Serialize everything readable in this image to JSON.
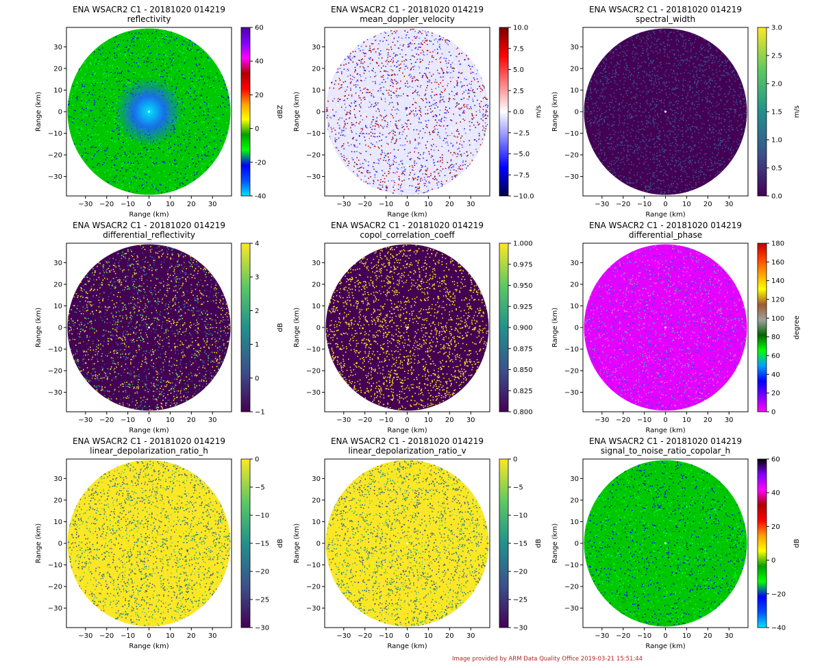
{
  "footer": {
    "credit": "Image provided by ARM Data Quality Office 2019-03-21 15:51:44"
  },
  "chart_data": [
    {
      "type": "heatmap",
      "title": "ENA WSACR2 C1 - 20181020 014219",
      "subtitle": "reflectivity",
      "xlabel": "Range (km)",
      "ylabel": "Range (km)",
      "xlim": [
        -39,
        39
      ],
      "ylim": [
        -39,
        39
      ],
      "xticks": [
        -30,
        -20,
        -10,
        0,
        10,
        20,
        30
      ],
      "yticks": [
        -30,
        -20,
        -10,
        0,
        10,
        20,
        30
      ],
      "colorbar": {
        "label": "dBZ",
        "range": [
          -40,
          60
        ],
        "ticks": [
          "-40",
          "-20",
          "0",
          "20",
          "40",
          "60"
        ],
        "colors": [
          "#00e5ff",
          "#0050ff",
          "#0000ff",
          "#00ff00",
          "#00a000",
          "#ffff00",
          "#ffa000",
          "#ff0000",
          "#b00000",
          "#ff00ff",
          "#8000ff",
          "#5000a0"
        ]
      },
      "field": {
        "dominant": "#00c800",
        "center": "#1a66ff",
        "speckle": [
          "#0000ff",
          "#00ff33",
          "#00a000"
        ]
      }
    },
    {
      "type": "heatmap",
      "title": "ENA WSACR2 C1 - 20181020 014219",
      "subtitle": "mean_doppler_velocity",
      "xlabel": "Range (km)",
      "ylabel": "Range (km)",
      "xlim": [
        -39,
        39
      ],
      "ylim": [
        -39,
        39
      ],
      "xticks": [
        -30,
        -20,
        -10,
        0,
        10,
        20,
        30
      ],
      "yticks": [
        -30,
        -20,
        -10,
        0,
        10,
        20,
        30
      ],
      "colorbar": {
        "label": "m/s",
        "range": [
          -10,
          10
        ],
        "ticks": [
          "−10.0",
          "−7.5",
          "−5.0",
          "−2.5",
          "0.0",
          "2.5",
          "5.0",
          "7.5",
          "10.0"
        ],
        "colors": [
          "#00004a",
          "#0000ff",
          "#8080ff",
          "#ffffff",
          "#ff8080",
          "#ff0000",
          "#7a0000"
        ]
      },
      "field": {
        "dominant": "#e8e8ff",
        "center": "#e8e8ff",
        "speckle": [
          "#1a1aff",
          "#d00000",
          "#ffffff",
          "#6060ff",
          "#900000"
        ]
      }
    },
    {
      "type": "heatmap",
      "title": "ENA WSACR2 C1 - 20181020 014219",
      "subtitle": "spectral_width",
      "xlabel": "Range (km)",
      "ylabel": "Range (km)",
      "xlim": [
        -39,
        39
      ],
      "ylim": [
        -39,
        39
      ],
      "xticks": [
        -30,
        -20,
        -10,
        0,
        10,
        20,
        30
      ],
      "yticks": [
        -30,
        -20,
        -10,
        0,
        10,
        20,
        30
      ],
      "colorbar": {
        "label": "m/s",
        "range": [
          0,
          3
        ],
        "ticks": [
          "0.0",
          "0.5",
          "1.0",
          "1.5",
          "2.0",
          "2.5",
          "3.0"
        ],
        "colors": [
          "#440154",
          "#3b528b",
          "#21918c",
          "#5ec962",
          "#fde725"
        ]
      },
      "field": {
        "dominant": "#440154",
        "center": "#440154",
        "speckle": [
          "#3b528b"
        ]
      }
    },
    {
      "type": "heatmap",
      "title": "ENA WSACR2 C1 - 20181020 014219",
      "subtitle": "differential_reflectivity",
      "xlabel": "Range (km)",
      "ylabel": "Range (km)",
      "xlim": [
        -39,
        39
      ],
      "ylim": [
        -39,
        39
      ],
      "xticks": [
        -30,
        -20,
        -10,
        0,
        10,
        20,
        30
      ],
      "yticks": [
        -30,
        -20,
        -10,
        0,
        10,
        20,
        30
      ],
      "colorbar": {
        "label": "dB",
        "range": [
          -1,
          4
        ],
        "ticks": [
          "−1",
          "0",
          "1",
          "2",
          "3",
          "4"
        ],
        "colors": [
          "#440154",
          "#3b528b",
          "#21918c",
          "#5ec962",
          "#fde725"
        ]
      },
      "field": {
        "dominant": "#440154",
        "center": "#440154",
        "speckle": [
          "#fde725",
          "#21918c",
          "#5ec962",
          "#3b528b",
          "#fde725"
        ]
      }
    },
    {
      "type": "heatmap",
      "title": "ENA WSACR2 C1 - 20181020 014219",
      "subtitle": "copol_correlation_coeff",
      "xlabel": "Range (km)",
      "ylabel": "Range (km)",
      "xlim": [
        -39,
        39
      ],
      "ylim": [
        -39,
        39
      ],
      "xticks": [
        -30,
        -20,
        -10,
        0,
        10,
        20,
        30
      ],
      "yticks": [
        -30,
        -20,
        -10,
        0,
        10,
        20,
        30
      ],
      "colorbar": {
        "label": "",
        "range": [
          0.8,
          1.0
        ],
        "ticks": [
          "0.800",
          "0.825",
          "0.850",
          "0.875",
          "0.900",
          "0.925",
          "0.950",
          "0.975",
          "1.000"
        ],
        "colors": [
          "#440154",
          "#3b528b",
          "#21918c",
          "#5ec962",
          "#fde725"
        ]
      },
      "field": {
        "dominant": "#440154",
        "center": "#440154",
        "speckle": [
          "#fde725"
        ]
      }
    },
    {
      "type": "heatmap",
      "title": "ENA WSACR2 C1 - 20181020 014219",
      "subtitle": "differential_phase",
      "xlabel": "Range (km)",
      "ylabel": "Range (km)",
      "xlim": [
        -39,
        39
      ],
      "ylim": [
        -39,
        39
      ],
      "xticks": [
        -30,
        -20,
        -10,
        0,
        10,
        20,
        30
      ],
      "yticks": [
        -30,
        -20,
        -10,
        0,
        10,
        20,
        30
      ],
      "colorbar": {
        "label": "degree",
        "range": [
          0,
          180
        ],
        "ticks": [
          "0",
          "20",
          "40",
          "60",
          "80",
          "100",
          "120",
          "140",
          "160",
          "180"
        ],
        "colors": [
          "#ff00ff",
          "#8000ff",
          "#0000ff",
          "#00a0ff",
          "#00ff00",
          "#006400",
          "#a0a0a0",
          "#a05a2c",
          "#ffff00",
          "#ffa000",
          "#ff4000",
          "#c00000"
        ]
      },
      "field": {
        "dominant": "#e600ff",
        "center": "#e600ff",
        "speckle": [
          "#8a2be2",
          "#5aa0a0",
          "#ff66ff",
          "#4040ff"
        ]
      }
    },
    {
      "type": "heatmap",
      "title": "ENA WSACR2 C1 - 20181020 014219",
      "subtitle": "linear_depolarization_ratio_h",
      "xlabel": "Range (km)",
      "ylabel": "Range (km)",
      "xlim": [
        -39,
        39
      ],
      "ylim": [
        -39,
        39
      ],
      "xticks": [
        -30,
        -20,
        -10,
        0,
        10,
        20,
        30
      ],
      "yticks": [
        -30,
        -20,
        -10,
        0,
        10,
        20,
        30
      ],
      "colorbar": {
        "label": "dB",
        "range": [
          -30,
          0
        ],
        "ticks": [
          "−30",
          "−25",
          "−20",
          "−15",
          "−10",
          "−5",
          "0"
        ],
        "colors": [
          "#440154",
          "#3b528b",
          "#21918c",
          "#5ec962",
          "#fde725"
        ]
      },
      "field": {
        "dominant": "#fde725",
        "center": "#fde725",
        "speckle": [
          "#21918c",
          "#5ec962",
          "#3b528b"
        ]
      }
    },
    {
      "type": "heatmap",
      "title": "ENA WSACR2 C1 - 20181020 014219",
      "subtitle": "linear_depolarization_ratio_v",
      "xlabel": "Range (km)",
      "ylabel": "Range (km)",
      "xlim": [
        -39,
        39
      ],
      "ylim": [
        -39,
        39
      ],
      "xticks": [
        -30,
        -20,
        -10,
        0,
        10,
        20,
        30
      ],
      "yticks": [
        -30,
        -20,
        -10,
        0,
        10,
        20,
        30
      ],
      "colorbar": {
        "label": "dB",
        "range": [
          -30,
          0
        ],
        "ticks": [
          "−30",
          "−25",
          "−20",
          "−15",
          "−10",
          "−5",
          "0"
        ],
        "colors": [
          "#440154",
          "#3b528b",
          "#21918c",
          "#5ec962",
          "#fde725"
        ]
      },
      "field": {
        "dominant": "#fde725",
        "center": "#fde725",
        "speckle": [
          "#21918c",
          "#5ec962",
          "#3b528b"
        ]
      }
    },
    {
      "type": "heatmap",
      "title": "ENA WSACR2 C1 - 20181020 014219",
      "subtitle": "signal_to_noise_ratio_copolar_h",
      "xlabel": "Range (km)",
      "ylabel": "Range (km)",
      "xlim": [
        -39,
        39
      ],
      "ylim": [
        -39,
        39
      ],
      "xticks": [
        -30,
        -20,
        -10,
        0,
        10,
        20,
        30
      ],
      "yticks": [
        -30,
        -20,
        -10,
        0,
        10,
        20,
        30
      ],
      "colorbar": {
        "label": "dB",
        "range": [
          -40,
          60
        ],
        "ticks": [
          "−40",
          "−20",
          "0",
          "20",
          "40",
          "60"
        ],
        "colors": [
          "#00e5ff",
          "#0050ff",
          "#0000ff",
          "#00ff00",
          "#00a000",
          "#ffff00",
          "#ffa000",
          "#ff0000",
          "#b00000",
          "#ff00ff",
          "#8000ff",
          "#000000"
        ]
      },
      "field": {
        "dominant": "#00c800",
        "center": "#00c800",
        "speckle": [
          "#00ff33",
          "#009a00",
          "#0000ff"
        ]
      }
    }
  ]
}
